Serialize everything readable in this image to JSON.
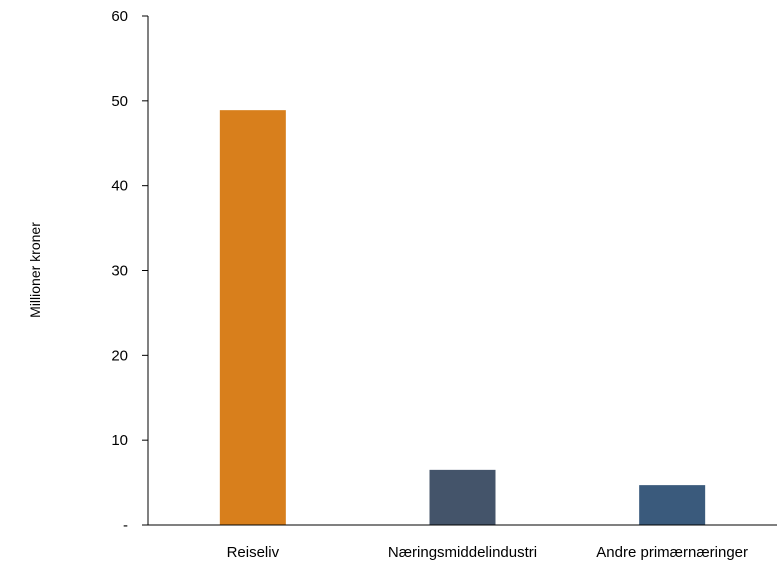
{
  "chart_data": {
    "type": "bar",
    "categories": [
      "Reiseliv",
      "Næringsmiddelindustri",
      "Andre primærnæringer"
    ],
    "values": [
      48.9,
      6.5,
      4.7
    ],
    "colors": [
      "#d87f1c",
      "#44546a",
      "#3a5a7c"
    ],
    "ylabel": "Millioner kroner",
    "ylim": [
      0,
      60
    ],
    "yticks": [
      0,
      10,
      20,
      30,
      40,
      50,
      60
    ],
    "ytick_labels": [
      "-",
      "10",
      "20",
      "30",
      "40",
      "50",
      "60"
    ],
    "grid": false,
    "legend": "none"
  }
}
